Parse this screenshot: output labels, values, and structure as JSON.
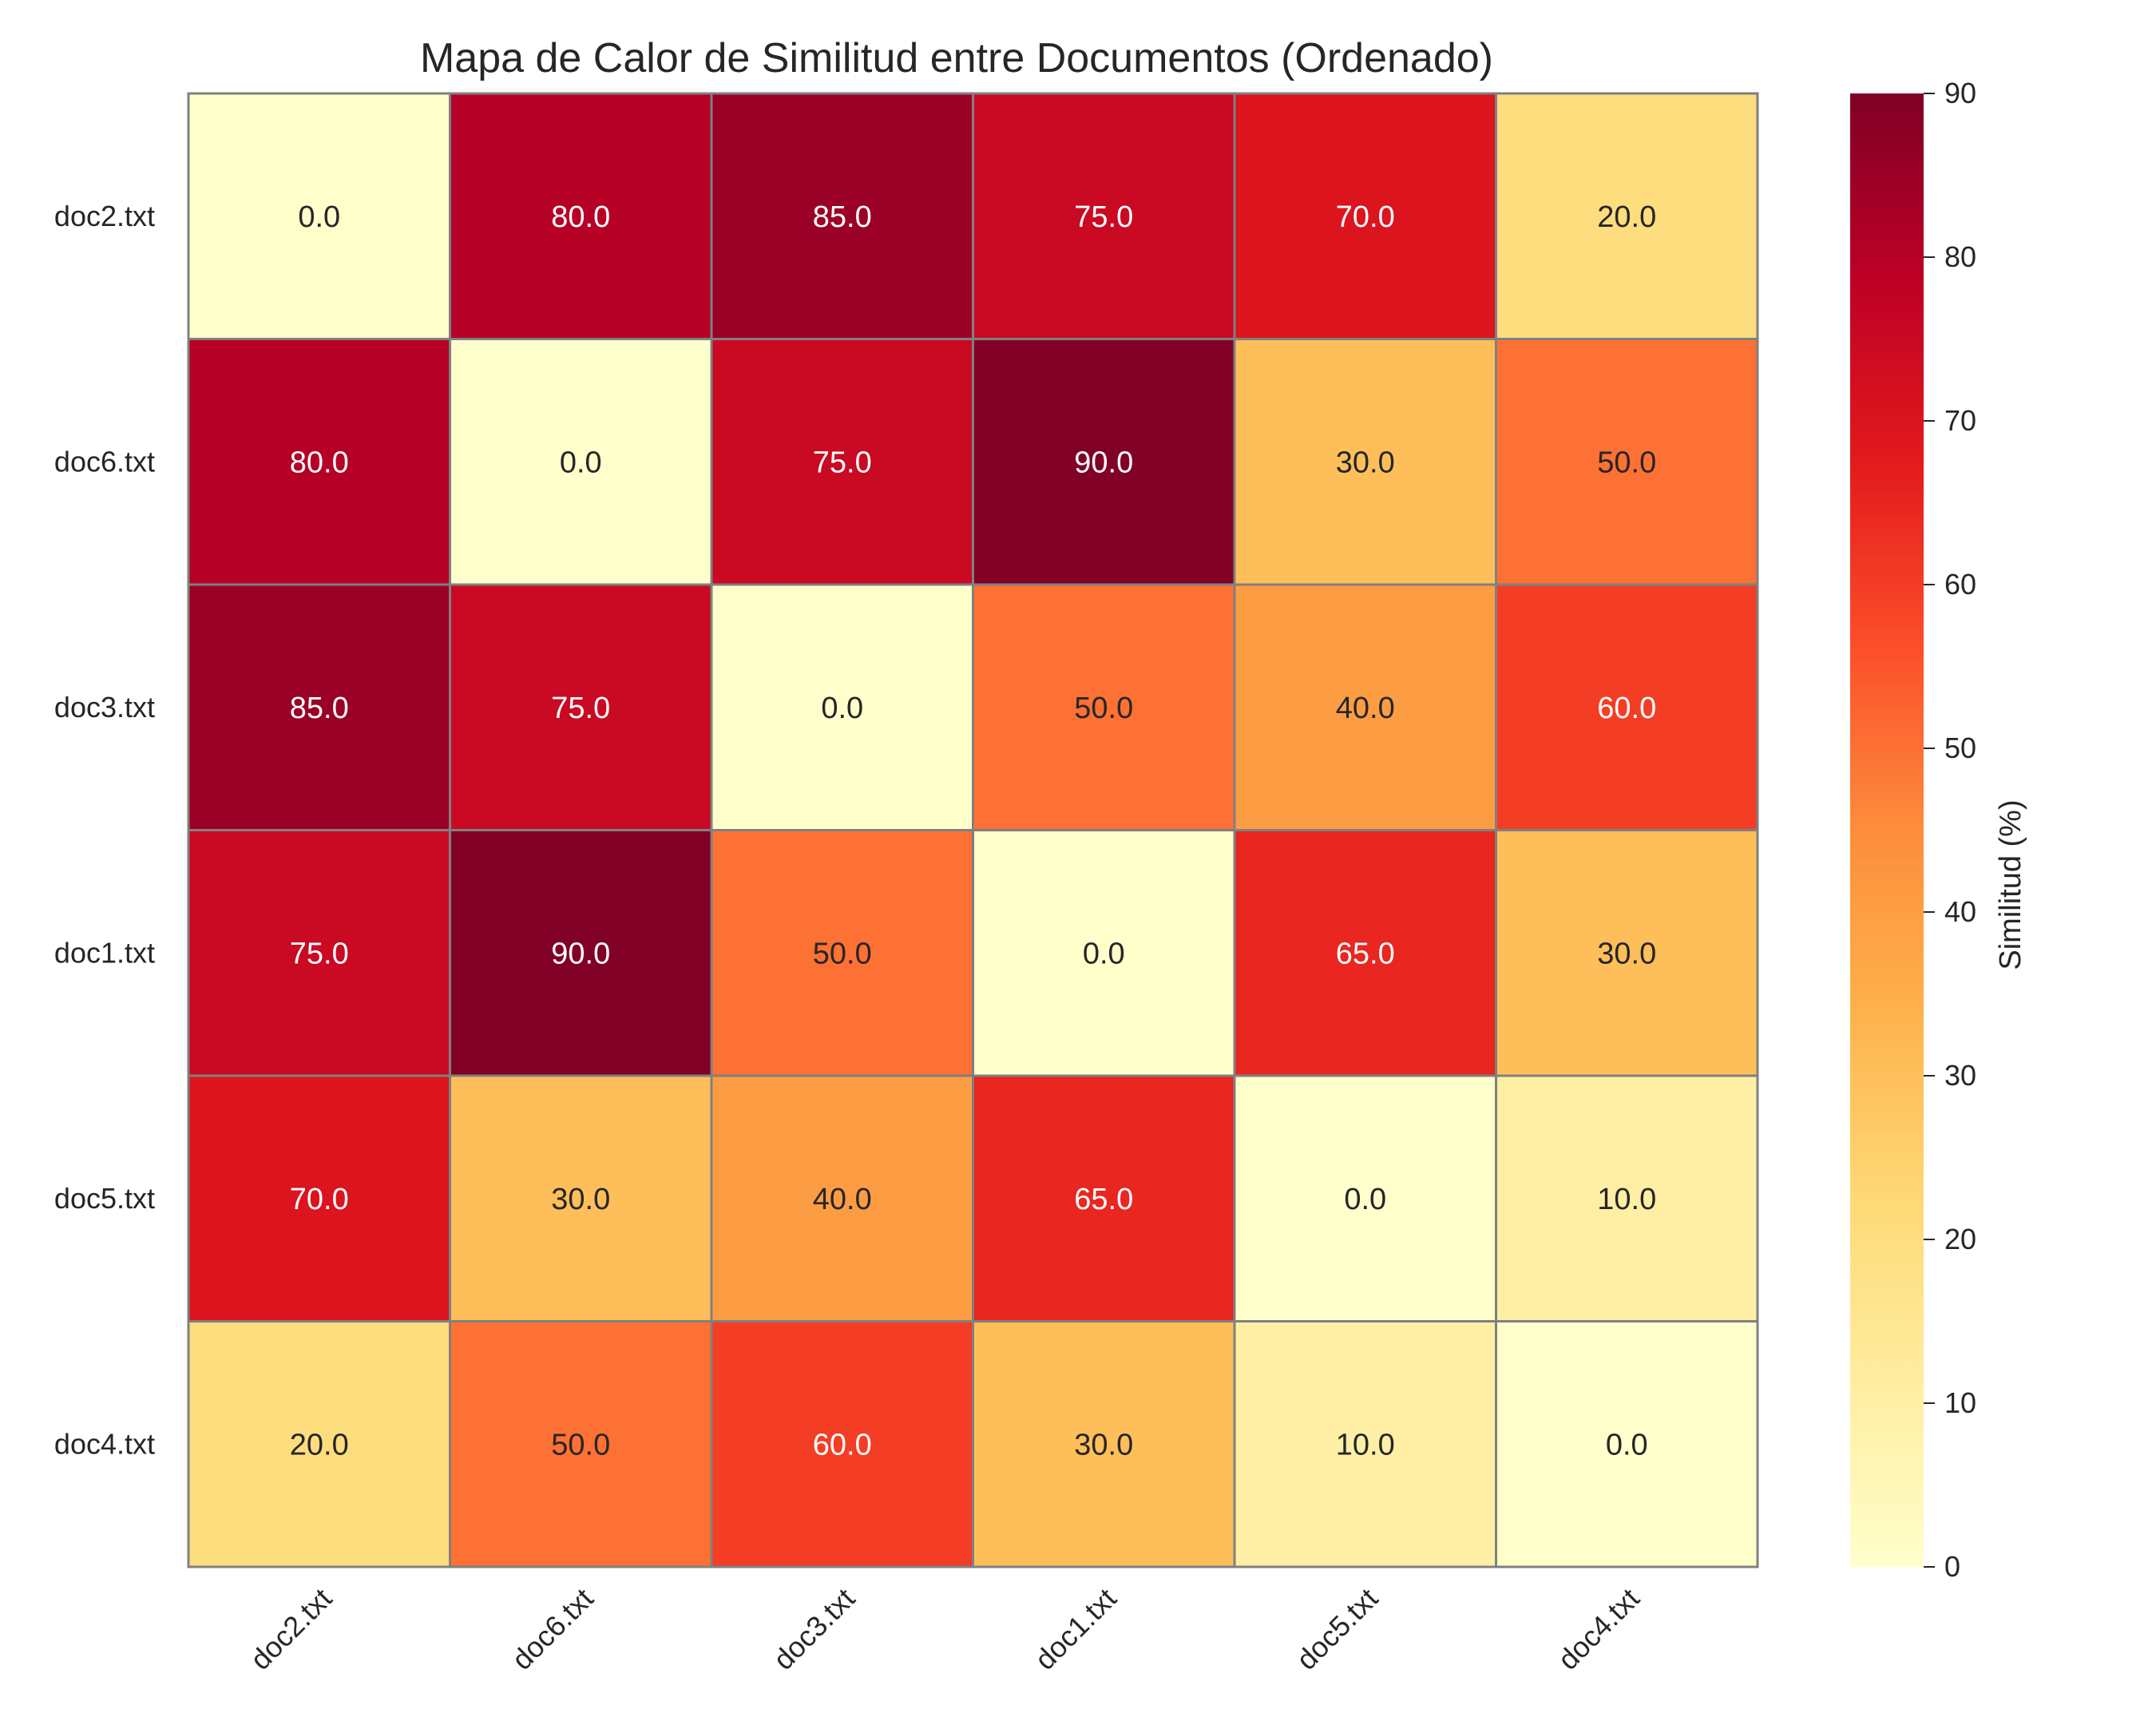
{
  "chart_data": {
    "type": "heatmap",
    "title": "Mapa de Calor de Similitud entre Documentos (Ordenado)",
    "x_labels": [
      "doc2.txt",
      "doc6.txt",
      "doc3.txt",
      "doc1.txt",
      "doc5.txt",
      "doc4.txt"
    ],
    "y_labels": [
      "doc2.txt",
      "doc6.txt",
      "doc3.txt",
      "doc1.txt",
      "doc5.txt",
      "doc4.txt"
    ],
    "values": [
      [
        0,
        80,
        85,
        75,
        70,
        20
      ],
      [
        80,
        0,
        75,
        90,
        30,
        50
      ],
      [
        85,
        75,
        0,
        50,
        40,
        60
      ],
      [
        75,
        90,
        50,
        0,
        65,
        30
      ],
      [
        70,
        30,
        40,
        65,
        0,
        10
      ],
      [
        20,
        50,
        60,
        30,
        10,
        0
      ]
    ],
    "value_format": "0.0",
    "colorbar": {
      "label": "Similitud (%)",
      "range": [
        0,
        90
      ],
      "ticks": [
        0,
        10,
        20,
        30,
        40,
        50,
        60,
        70,
        80,
        90
      ]
    },
    "colormap": "YlOrRd",
    "colormap_stops": [
      "#ffffcc",
      "#ffeda0",
      "#fed976",
      "#feb24c",
      "#fd8d3c",
      "#fc4e2a",
      "#e31a1c",
      "#bd0026",
      "#800026"
    ],
    "cell_border_color": "#808080"
  }
}
